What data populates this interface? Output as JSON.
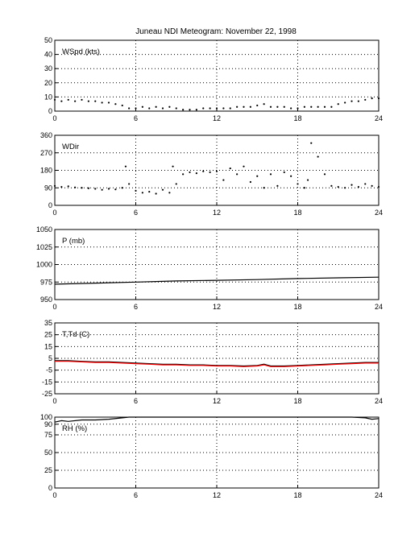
{
  "title": "Juneau NDI Meteogram:   November 22, 1998",
  "chart_data": [
    {
      "type": "scatter",
      "label": "WSpd (kts)",
      "xlim": [
        0,
        24
      ],
      "xticks": [
        0,
        6,
        12,
        18,
        24
      ],
      "ylim": [
        0,
        50
      ],
      "yticks": [
        0,
        10,
        20,
        30,
        40,
        50
      ],
      "grid": true,
      "series": [
        {
          "color": "#000000",
          "x": [
            0,
            0.5,
            1,
            1.5,
            2,
            2.5,
            3,
            3.5,
            4,
            4.5,
            5,
            5.5,
            6,
            6.5,
            7,
            7.5,
            8,
            8.5,
            9,
            9.5,
            10,
            10.5,
            11,
            11.5,
            12,
            12.5,
            13,
            13.5,
            14,
            14.5,
            15,
            15.5,
            16,
            16.5,
            17,
            17.5,
            18,
            18.5,
            19,
            19.5,
            20,
            20.5,
            21,
            21.5,
            22,
            22.5,
            23,
            23.5,
            24
          ],
          "values": [
            8,
            7,
            8,
            7,
            8,
            7,
            7,
            6,
            6,
            5,
            4,
            2,
            2,
            3,
            2,
            3,
            2,
            3,
            2,
            1,
            1,
            1,
            2,
            2,
            2,
            2,
            2,
            3,
            3,
            3,
            4,
            5,
            3,
            3,
            3,
            2,
            2,
            3,
            3,
            3,
            3,
            3,
            5,
            6,
            7,
            7,
            8,
            9,
            9
          ]
        }
      ]
    },
    {
      "type": "scatter",
      "label": "WDir",
      "xlim": [
        0,
        24
      ],
      "xticks": [
        0,
        6,
        12,
        18,
        24
      ],
      "ylim": [
        0,
        360
      ],
      "yticks": [
        0,
        90,
        180,
        270,
        360
      ],
      "grid": true,
      "series": [
        {
          "color": "#000000",
          "x": [
            0,
            0.5,
            1,
            1.5,
            2,
            2.5,
            3,
            3.5,
            4,
            4.5,
            5,
            5.25,
            5.5,
            6,
            6.5,
            7,
            7.5,
            8,
            8.5,
            8.75,
            9,
            9.5,
            10,
            10.5,
            11,
            11.5,
            12,
            12.5,
            13,
            13.5,
            14,
            14.5,
            15,
            15.5,
            16,
            16.5,
            17,
            17.5,
            18,
            18.5,
            18.75,
            19,
            19.5,
            20,
            20.5,
            21,
            21.5,
            22,
            22.5,
            23,
            23.5,
            24
          ],
          "values": [
            100,
            95,
            98,
            92,
            90,
            88,
            85,
            80,
            85,
            82,
            90,
            200,
            110,
            75,
            65,
            70,
            60,
            80,
            65,
            200,
            110,
            160,
            170,
            165,
            175,
            170,
            175,
            130,
            190,
            160,
            200,
            120,
            150,
            90,
            160,
            100,
            170,
            150,
            110,
            90,
            130,
            320,
            250,
            160,
            100,
            95,
            90,
            105,
            95,
            110,
            100,
            95
          ]
        }
      ]
    },
    {
      "type": "line",
      "label": "P (mb)",
      "xlim": [
        0,
        24
      ],
      "xticks": [
        0,
        6,
        12,
        18,
        24
      ],
      "ylim": [
        950,
        1050
      ],
      "yticks": [
        950,
        975,
        1000,
        1025,
        1050
      ],
      "grid": true,
      "series": [
        {
          "color": "#000000",
          "x": [
            0,
            3,
            6,
            9,
            12,
            15,
            18,
            21,
            24
          ],
          "values": [
            972,
            973.5,
            975,
            976.5,
            977.5,
            978.5,
            980,
            981,
            982
          ]
        }
      ]
    },
    {
      "type": "line",
      "label": "T,Td (C)",
      "xlim": [
        0,
        24
      ],
      "xticks": [
        0,
        6,
        12,
        18,
        24
      ],
      "ylim": [
        -25,
        35
      ],
      "yticks": [
        -25,
        -15,
        -5,
        5,
        15,
        25,
        35
      ],
      "grid": true,
      "series": [
        {
          "color": "#000000",
          "x": [
            0,
            1,
            2,
            3,
            4,
            5,
            6,
            7,
            8,
            9,
            10,
            11,
            12,
            13,
            14,
            15,
            15.5,
            16,
            17,
            18,
            19,
            20,
            21,
            22,
            23,
            24
          ],
          "values": [
            3,
            3,
            2.5,
            2,
            2,
            1.5,
            1,
            0.5,
            0,
            0,
            -0.5,
            -0.5,
            -1,
            -1,
            -1.5,
            -1,
            0,
            -1.5,
            -1.5,
            -1,
            -0.5,
            0,
            0.5,
            1,
            1.5,
            1.5
          ]
        },
        {
          "color": "#ff0000",
          "x": [
            0,
            1,
            2,
            3,
            4,
            5,
            6,
            7,
            8,
            9,
            10,
            11,
            12,
            13,
            14,
            15,
            15.5,
            16,
            17,
            18,
            19,
            20,
            21,
            22,
            23,
            24
          ],
          "values": [
            2.5,
            2.5,
            2,
            1.5,
            1.5,
            1,
            0.5,
            0,
            -0.5,
            -0.5,
            -1,
            -1,
            -1.5,
            -1.5,
            -2,
            -1.5,
            -0.5,
            -2,
            -2,
            -1.5,
            -1,
            -0.5,
            0,
            0.5,
            1,
            1
          ]
        }
      ]
    },
    {
      "type": "line",
      "label": "RH (%)",
      "xlim": [
        0,
        24
      ],
      "xticks": [
        0,
        6,
        12,
        18,
        24
      ],
      "ylim": [
        0,
        100
      ],
      "yticks": [
        0,
        25,
        50,
        75,
        90,
        100
      ],
      "grid": true,
      "series": [
        {
          "color": "#000000",
          "x": [
            0,
            0.5,
            1,
            2,
            3,
            4,
            5,
            5.5,
            6,
            7,
            8,
            9,
            10,
            11,
            12,
            13,
            14,
            15,
            16,
            17,
            18,
            19,
            20,
            21,
            22,
            23,
            23.5,
            24
          ],
          "values": [
            93,
            95,
            94,
            96,
            96,
            97,
            99,
            100,
            100,
            100,
            100,
            100,
            100,
            100,
            100,
            100,
            100,
            100,
            100,
            100,
            100,
            100,
            100,
            100,
            100,
            99,
            97,
            98
          ]
        }
      ]
    }
  ]
}
